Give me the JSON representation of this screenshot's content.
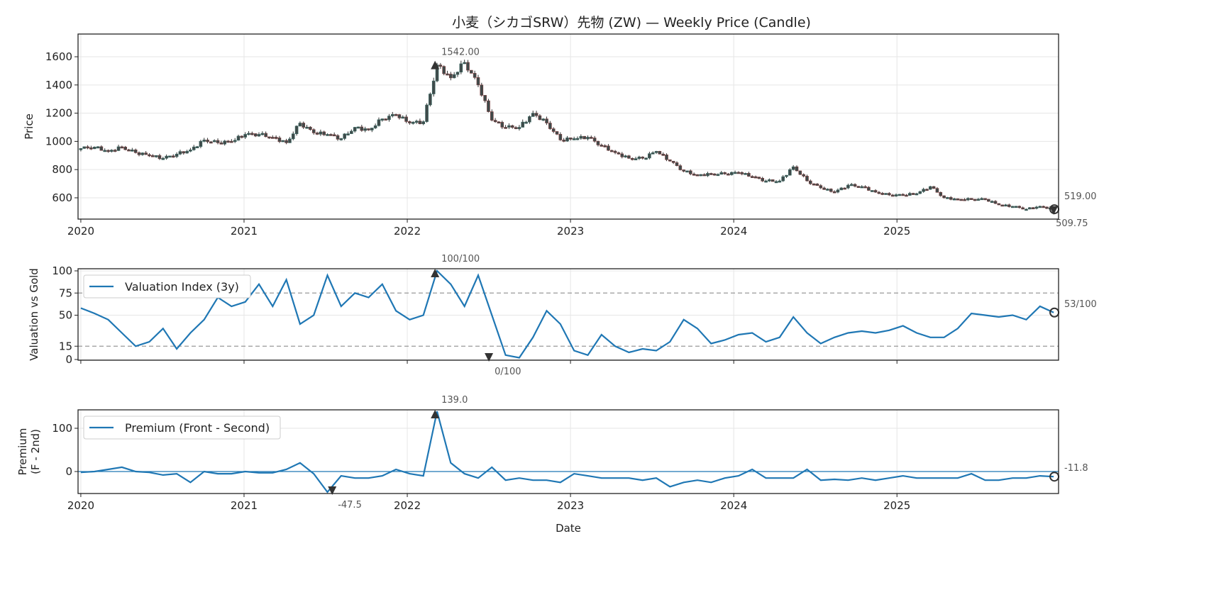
{
  "title": "小麦（シカゴSRW）先物 (ZW) — Weekly Price (Candle)",
  "colors": {
    "line": "#1f77b4",
    "candle_body": "#3f4a4a",
    "candle_down_edge": "#7a3b3b",
    "grid": "#e6e6e6",
    "dash": "#999999",
    "annot": "#555555"
  },
  "chart_data": [
    {
      "type": "candlestick",
      "name": "price",
      "ylabel": "Price",
      "ylim": [
        449,
        1761
      ],
      "yticks": [
        600,
        800,
        1000,
        1200,
        1400,
        1600
      ],
      "xlim": [
        2019.983,
        2025.99
      ],
      "xticks": [
        2020,
        2021,
        2022,
        2023,
        2024,
        2025
      ],
      "xtick_labels": [
        "2020",
        "2021",
        "2022",
        "2023",
        "2024",
        "2025"
      ],
      "x_start": 2020.0,
      "x_end": 2025.96,
      "monthly_close": [
        950,
        960,
        930,
        960,
        920,
        900,
        880,
        910,
        940,
        1010,
        990,
        1000,
        1050,
        1050,
        1030,
        990,
        1130,
        1060,
        1050,
        1020,
        1100,
        1080,
        1160,
        1190,
        1130,
        1140,
        1542,
        1450,
        1560,
        1400,
        1150,
        1100,
        1100,
        1200,
        1130,
        1010,
        1020,
        1030,
        970,
        920,
        880,
        880,
        930,
        860,
        790,
        760,
        770,
        770,
        780,
        750,
        720,
        720,
        820,
        720,
        670,
        640,
        690,
        680,
        640,
        620,
        620,
        630,
        680,
        600,
        590,
        590,
        590,
        550,
        540,
        520,
        540,
        519
      ],
      "annotations": [
        {
          "label": "1542.00",
          "x": 2022.17,
          "y": 1542,
          "marker": "up-arrow"
        },
        {
          "label": "519.00",
          "x": 2025.96,
          "y": 519,
          "marker": "circle"
        },
        {
          "label": "509.75",
          "x": 2025.96,
          "y": 509.75,
          "marker": "down-arrow"
        }
      ]
    },
    {
      "type": "line",
      "name": "valuation",
      "ylabel": "Valuation vs Gold",
      "legend": "Valuation Index (3y)",
      "legend_position": "upper-left",
      "ylim": [
        -0.8,
        102.4
      ],
      "yticks": [
        0,
        15,
        50,
        75,
        100
      ],
      "hlines": [
        15,
        75
      ],
      "x_start": 2020.0,
      "x_end": 2025.96,
      "values": [
        58,
        52,
        45,
        30,
        15,
        20,
        35,
        12,
        30,
        45,
        70,
        60,
        65,
        85,
        60,
        90,
        40,
        50,
        95,
        60,
        75,
        70,
        85,
        55,
        45,
        50,
        100,
        85,
        60,
        95,
        50,
        5,
        2,
        25,
        55,
        40,
        10,
        5,
        28,
        15,
        8,
        12,
        10,
        20,
        45,
        35,
        18,
        22,
        28,
        30,
        20,
        25,
        48,
        30,
        18,
        25,
        30,
        32,
        30,
        33,
        38,
        30,
        25,
        25,
        35,
        52,
        50,
        48,
        50,
        45,
        60,
        53
      ],
      "annotations": [
        {
          "label": "100/100",
          "x": 2022.17,
          "y": 100,
          "marker": "up-arrow"
        },
        {
          "label": "0/100",
          "x": 2022.5,
          "y": 0,
          "marker": "down-arrow"
        },
        {
          "label": "53/100",
          "x": 2025.96,
          "y": 53,
          "marker": "circle"
        }
      ]
    },
    {
      "type": "line",
      "name": "premium",
      "ylabel": "Premium",
      "ylabel2": "(F - 2nd)",
      "xlabel": "Date",
      "legend": "Premium (Front - Second)",
      "legend_position": "upper-left",
      "ylim": [
        -50.8,
        142.6
      ],
      "yticks": [
        0,
        100
      ],
      "hlines": [
        0
      ],
      "x_start": 2020.0,
      "x_end": 2025.96,
      "values": [
        -2,
        0,
        5,
        10,
        0,
        -2,
        -8,
        -5,
        -25,
        0,
        -5,
        -5,
        0,
        -3,
        -3,
        5,
        20,
        -5,
        -47.5,
        -10,
        -15,
        -15,
        -10,
        5,
        -5,
        -10,
        139,
        20,
        -5,
        -15,
        10,
        -20,
        -15,
        -20,
        -20,
        -25,
        -5,
        -10,
        -15,
        -15,
        -15,
        -20,
        -15,
        -35,
        -25,
        -20,
        -25,
        -15,
        -10,
        5,
        -15,
        -15,
        -15,
        5,
        -20,
        -18,
        -20,
        -15,
        -20,
        -15,
        -10,
        -15,
        -15,
        -15,
        -15,
        -5,
        -20,
        -20,
        -15,
        -15,
        -10,
        -11.8
      ],
      "annotations": [
        {
          "label": "139.0",
          "x": 2022.17,
          "y": 139,
          "marker": "up-arrow"
        },
        {
          "label": "-47.5",
          "x": 2021.54,
          "y": -47.5,
          "marker": "down-arrow"
        },
        {
          "label": "-11.8",
          "x": 2025.96,
          "y": -11.8,
          "marker": "circle"
        }
      ]
    }
  ]
}
